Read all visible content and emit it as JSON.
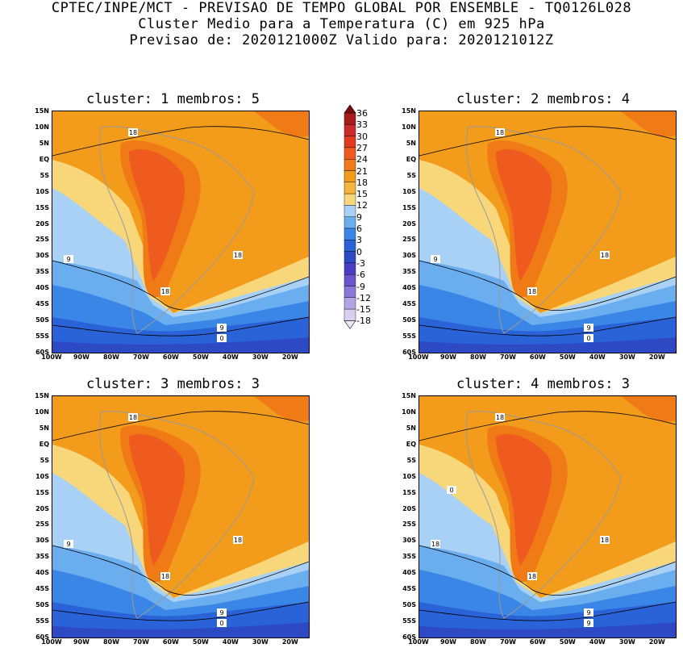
{
  "header": {
    "line1": "CPTEC/INPE/MCT - PREVISAO DE TEMPO GLOBAL POR ENSEMBLE - TQ0126L028",
    "line2": "Cluster Medio para a Temperatura (C) em 925 hPa",
    "line3": "Previsao de: 2020121000Z   Valido para: 2020121012Z"
  },
  "axes": {
    "lat_labels": [
      "15N",
      "10N",
      "5N",
      "EQ",
      "5S",
      "10S",
      "15S",
      "20S",
      "25S",
      "30S",
      "35S",
      "40S",
      "45S",
      "50S",
      "55S",
      "60S"
    ],
    "lon_labels": [
      "100W",
      "90W",
      "80W",
      "70W",
      "60W",
      "50W",
      "40W",
      "30W",
      "20W"
    ]
  },
  "panels": [
    {
      "title": "cluster: 1   membros: 5",
      "contour_labels": [
        "18",
        "18",
        "18",
        "9",
        "9",
        "0"
      ]
    },
    {
      "title": "cluster: 2   membros: 4",
      "contour_labels": [
        "18",
        "18",
        "18",
        "9",
        "9",
        "0"
      ]
    },
    {
      "title": "cluster: 3   membros: 3",
      "contour_labels": [
        "18",
        "18",
        "18",
        "9",
        "9",
        "0"
      ]
    },
    {
      "title": "cluster: 4   membros: 3",
      "contour_labels": [
        "18",
        "18",
        "18",
        "18",
        "9",
        "9",
        "0"
      ]
    }
  ],
  "colorbar": {
    "levels": [
      "36",
      "33",
      "30",
      "27",
      "24",
      "21",
      "18",
      "15",
      "12",
      "9",
      "6",
      "3",
      "0",
      "-3",
      "-6",
      "-9",
      "-12",
      "-15",
      "-18"
    ],
    "colors": [
      "#7a0d0d",
      "#a61c1c",
      "#c92a2a",
      "#e03b1f",
      "#ef5a1f",
      "#f07a16",
      "#f39b1a",
      "#f5b53a",
      "#f8d77a",
      "#a9d1f5",
      "#6aaef0",
      "#3a86e6",
      "#2a62d8",
      "#2d49c4",
      "#4a3fc4",
      "#6a55cf",
      "#8b78db",
      "#b3a4e6",
      "#d8cff0",
      "#ece8f7"
    ],
    "symbols": {
      "max_arrow": "▲",
      "min_arrow": "▽"
    }
  }
}
